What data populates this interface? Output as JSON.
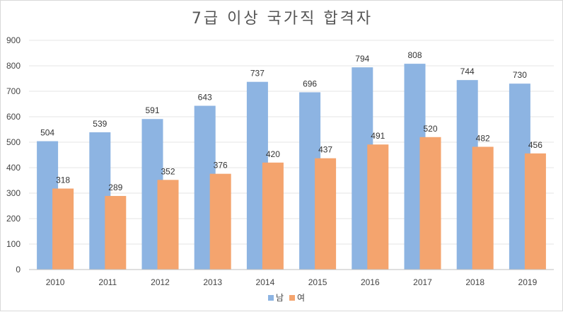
{
  "chart_data": {
    "type": "bar",
    "title": "7급 이상 국가직 합격자",
    "categories": [
      "2010",
      "2011",
      "2012",
      "2013",
      "2014",
      "2015",
      "2016",
      "2017",
      "2018",
      "2019"
    ],
    "series": [
      {
        "name": "남",
        "color": "#8db4e2",
        "values": [
          504,
          539,
          591,
          643,
          737,
          696,
          794,
          808,
          744,
          730
        ]
      },
      {
        "name": "여",
        "color": "#f4a46e",
        "values": [
          318,
          289,
          352,
          376,
          420,
          437,
          491,
          520,
          482,
          456
        ]
      }
    ],
    "ylim": [
      0,
      900
    ],
    "yticks": [
      0,
      100,
      200,
      300,
      400,
      500,
      600,
      700,
      800,
      900
    ],
    "grid": true,
    "legend": "bottom-center",
    "xlabel": "",
    "ylabel": ""
  }
}
